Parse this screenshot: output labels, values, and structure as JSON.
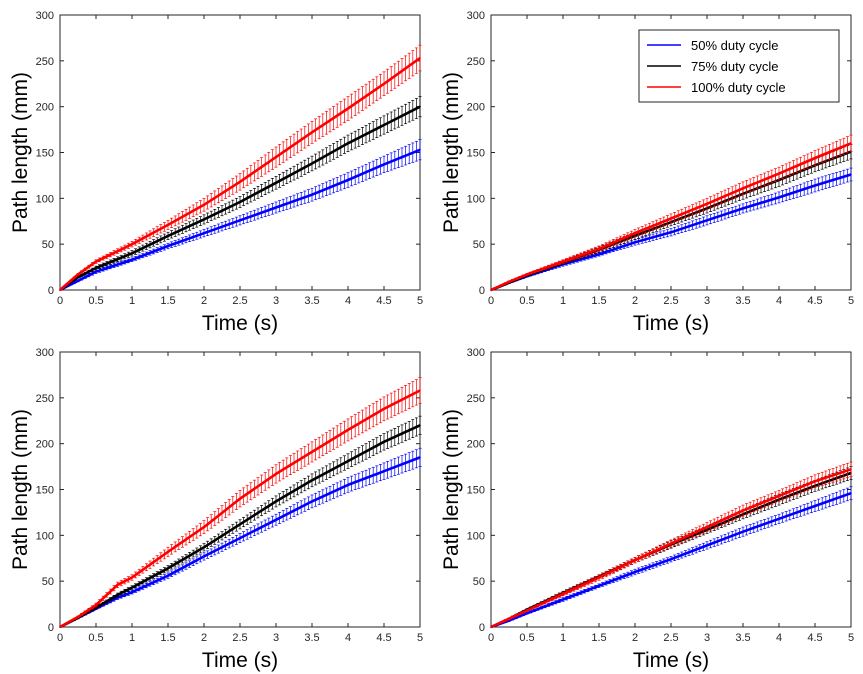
{
  "colors": {
    "blue": "#0000ff",
    "black": "#000000",
    "red": "#ff0000",
    "axis": "#262626"
  },
  "legend": [
    "50% duty cycle",
    "75% duty cycle",
    "100% duty cycle"
  ],
  "chart_data": [
    {
      "type": "line",
      "xlabel": "Time (s)",
      "ylabel": "Path length (mm)",
      "xlim": [
        0,
        5
      ],
      "ylim": [
        0,
        300
      ],
      "xticks": [
        "0",
        "0.5",
        "1",
        "1.5",
        "2",
        "2.5",
        "3",
        "3.5",
        "4",
        "4.5",
        "5"
      ],
      "yticks": [
        "0",
        "50",
        "100",
        "150",
        "200",
        "250",
        "300"
      ],
      "x": [
        0,
        0.25,
        0.5,
        1,
        1.5,
        2,
        2.5,
        3,
        3.5,
        4,
        4.5,
        5
      ],
      "series": [
        {
          "name": "50% duty cycle",
          "color": "#0000ff",
          "values": [
            0,
            10,
            20,
            33,
            48,
            62,
            76,
            90,
            104,
            120,
            137,
            153
          ],
          "errors": [
            0,
            1,
            2,
            2,
            3,
            4,
            5,
            6,
            7,
            8,
            9,
            11
          ]
        },
        {
          "name": "75% duty cycle",
          "color": "#000000",
          "values": [
            0,
            14,
            24,
            40,
            59,
            77,
            96,
            117,
            138,
            160,
            180,
            200
          ],
          "errors": [
            0,
            1,
            2,
            3,
            4,
            5,
            6,
            7,
            8,
            9,
            10,
            11
          ]
        },
        {
          "name": "100% duty cycle",
          "color": "#ff0000",
          "values": [
            0,
            17,
            31,
            50,
            71,
            93,
            118,
            145,
            172,
            198,
            225,
            253
          ],
          "errors": [
            0,
            1,
            2,
            3,
            5,
            7,
            9,
            11,
            12,
            13,
            13,
            14
          ]
        }
      ]
    },
    {
      "type": "line",
      "xlabel": "Time (s)",
      "ylabel": "Path length (mm)",
      "xlim": [
        0,
        5
      ],
      "ylim": [
        0,
        300
      ],
      "xticks": [
        "0",
        "0.5",
        "1",
        "1.5",
        "2",
        "2.5",
        "3",
        "3.5",
        "4",
        "4.5",
        "5"
      ],
      "yticks": [
        "0",
        "50",
        "100",
        "150",
        "200",
        "250",
        "300"
      ],
      "legend": "top-right",
      "x": [
        0,
        0.25,
        0.5,
        1,
        1.5,
        2,
        2.5,
        3,
        3.5,
        4,
        4.5,
        5
      ],
      "series": [
        {
          "name": "50% duty cycle",
          "color": "#0000ff",
          "values": [
            0,
            8,
            15,
            28,
            39,
            52,
            63,
            76,
            89,
            101,
            114,
            126
          ],
          "errors": [
            0,
            1,
            1,
            2,
            2,
            3,
            4,
            5,
            5,
            6,
            7,
            7
          ]
        },
        {
          "name": "75% duty cycle",
          "color": "#000000",
          "values": [
            0,
            8,
            16,
            30,
            44,
            59,
            74,
            89,
            105,
            120,
            136,
            151
          ],
          "errors": [
            0,
            1,
            1,
            2,
            3,
            4,
            4,
            5,
            6,
            7,
            7,
            8
          ]
        },
        {
          "name": "100% duty cycle",
          "color": "#ff0000",
          "values": [
            0,
            9,
            17,
            31,
            45,
            62,
            78,
            94,
            111,
            127,
            144,
            160
          ],
          "errors": [
            0,
            1,
            1,
            2,
            3,
            4,
            5,
            6,
            7,
            7,
            8,
            9
          ]
        }
      ]
    },
    {
      "type": "line",
      "xlabel": "Time (s)",
      "ylabel": "Path length (mm)",
      "xlim": [
        0,
        5
      ],
      "ylim": [
        0,
        300
      ],
      "xticks": [
        "0",
        "0.5",
        "1",
        "1.5",
        "2",
        "2.5",
        "3",
        "3.5",
        "4",
        "4.5",
        "5"
      ],
      "yticks": [
        "0",
        "50",
        "100",
        "150",
        "200",
        "250",
        "300"
      ],
      "x": [
        0,
        0.25,
        0.5,
        0.8,
        1,
        1.5,
        2,
        2.5,
        3,
        3.5,
        4,
        4.5,
        5
      ],
      "series": [
        {
          "name": "50% duty cycle",
          "color": "#0000ff",
          "values": [
            0,
            10,
            20,
            32,
            38,
            56,
            77,
            97,
            117,
            137,
            155,
            170,
            185
          ],
          "errors": [
            0,
            1,
            1,
            2,
            2,
            3,
            4,
            5,
            6,
            7,
            8,
            9,
            10
          ]
        },
        {
          "name": "75% duty cycle",
          "color": "#000000",
          "values": [
            0,
            10,
            21,
            35,
            43,
            64,
            87,
            112,
            137,
            160,
            181,
            202,
            220
          ],
          "errors": [
            0,
            1,
            1,
            2,
            2,
            3,
            4,
            5,
            6,
            7,
            8,
            9,
            10
          ]
        },
        {
          "name": "100% duty cycle",
          "color": "#ff0000",
          "values": [
            0,
            11,
            24,
            46,
            54,
            82,
            109,
            140,
            167,
            191,
            215,
            238,
            258
          ],
          "errors": [
            0,
            1,
            2,
            3,
            3,
            5,
            7,
            9,
            10,
            11,
            12,
            13,
            14
          ]
        }
      ]
    },
    {
      "type": "line",
      "xlabel": "Time (s)",
      "ylabel": "Path length (mm)",
      "xlim": [
        0,
        5
      ],
      "ylim": [
        0,
        300
      ],
      "xticks": [
        "0",
        "0.5",
        "1",
        "1.5",
        "2",
        "2.5",
        "3",
        "3.5",
        "4",
        "4.5",
        "5"
      ],
      "yticks": [
        "0",
        "50",
        "100",
        "150",
        "200",
        "250",
        "300"
      ],
      "x": [
        0,
        0.25,
        0.5,
        1,
        1.5,
        2,
        2.5,
        3,
        3.5,
        4,
        4.5,
        5
      ],
      "series": [
        {
          "name": "50% duty cycle",
          "color": "#0000ff",
          "values": [
            0,
            7,
            15,
            30,
            45,
            60,
            74,
            89,
            104,
            118,
            132,
            146
          ],
          "errors": [
            0,
            1,
            1,
            2,
            2,
            3,
            3,
            4,
            5,
            5,
            6,
            7
          ]
        },
        {
          "name": "75% duty cycle",
          "color": "#000000",
          "values": [
            0,
            9,
            19,
            37,
            55,
            73,
            90,
            106,
            123,
            139,
            154,
            168
          ],
          "errors": [
            0,
            1,
            1,
            2,
            2,
            3,
            4,
            4,
            5,
            6,
            6,
            7
          ]
        },
        {
          "name": "100% duty cycle",
          "color": "#ff0000",
          "values": [
            0,
            9,
            18,
            36,
            54,
            73,
            91,
            109,
            127,
            143,
            159,
            172
          ],
          "errors": [
            0,
            1,
            1,
            2,
            3,
            3,
            4,
            5,
            6,
            6,
            7,
            8
          ]
        }
      ]
    }
  ]
}
